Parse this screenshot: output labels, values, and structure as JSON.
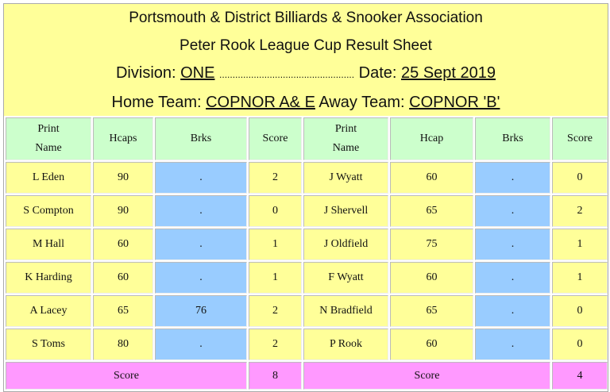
{
  "header": {
    "association": "Portsmouth & District Billiards & Snooker Association",
    "sheet_title": "Peter Rook League Cup Result Sheet",
    "division_label": "Division:",
    "division": "ONE",
    "dots": "...................................................",
    "date_label": "Date:",
    "date": "25 Sept 2019",
    "home_label": "Home Team:",
    "home_team": "COPNOR A& E",
    "away_label": "Away Team:",
    "away_team": "COPNOR 'B'"
  },
  "columns": {
    "home_name_1": "Print",
    "home_name_2": "Name",
    "home_hcap": "Hcaps",
    "home_brks": "Brks",
    "home_score": "Score",
    "away_name_1": "Print",
    "away_name_2": "Name",
    "away_hcap": "Hcap",
    "away_brks": "Brks",
    "away_score": "Score"
  },
  "rows": [
    {
      "home": "L Eden",
      "hh": "90",
      "hb": ".",
      "hs": "2",
      "away": "J Wyatt",
      "ah": "60",
      "ab": ".",
      "as": "0"
    },
    {
      "home": "S Compton",
      "hh": "90",
      "hb": ".",
      "hs": "0",
      "away": "J Shervell",
      "ah": "65",
      "ab": ".",
      "as": "2"
    },
    {
      "home": "M Hall",
      "hh": "60",
      "hb": ".",
      "hs": "1",
      "away": "J Oldfield",
      "ah": "75",
      "ab": ".",
      "as": "1"
    },
    {
      "home": "K Harding",
      "hh": "60",
      "hb": ".",
      "hs": "1",
      "away": "F Wyatt",
      "ah": "60",
      "ab": ".",
      "as": "1"
    },
    {
      "home": "A Lacey",
      "hh": "65",
      "hb": "76",
      "hs": "2",
      "away": "N Bradfield",
      "ah": "65",
      "ab": ".",
      "as": "0"
    },
    {
      "home": "S Toms",
      "hh": "80",
      "hb": ".",
      "hs": "2",
      "away": "P Rook",
      "ah": "60",
      "ab": ".",
      "as": "0"
    }
  ],
  "totals": {
    "home_label": "Score",
    "home_total": "8",
    "away_label": "Score",
    "away_total": "4"
  },
  "colors": {
    "header": "#ffff99",
    "column_header": "#ccffcc",
    "breaks": "#99ccff",
    "totals": "#ff99ff"
  }
}
